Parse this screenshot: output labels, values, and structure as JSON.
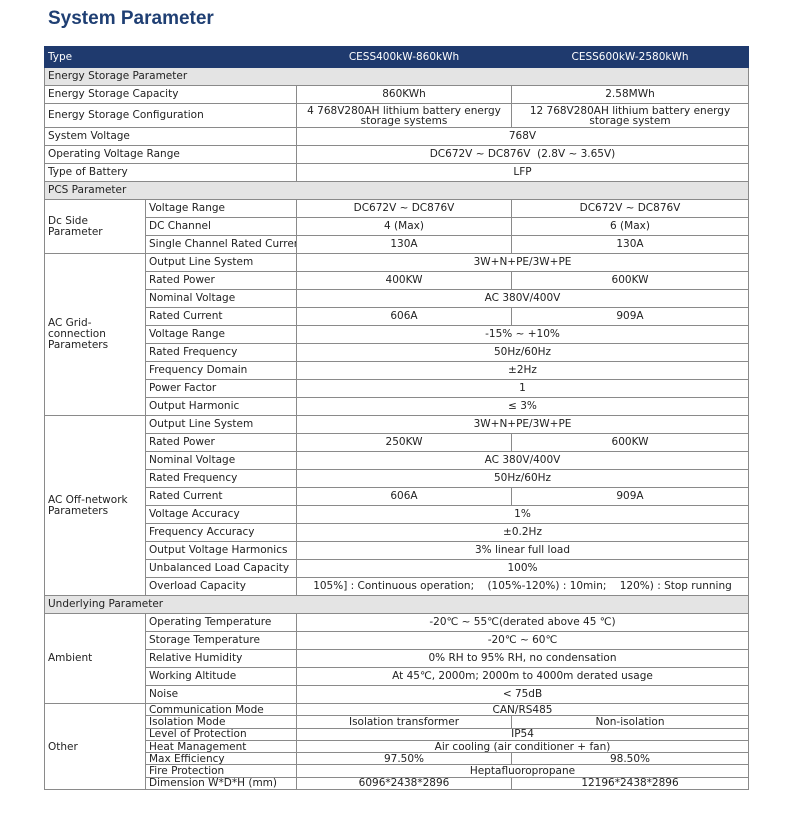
{
  "title": "System Parameter",
  "table": {
    "header": [
      "Type",
      "CESS400kW-860kWh",
      "CESS600kW-2580kWh"
    ],
    "sections": [
      {
        "title": "Energy Storage Parameter",
        "rows": [
          {
            "name": "Energy Storage Capacity",
            "values": [
              "860KWh",
              "2.58MWh"
            ]
          },
          {
            "name": "Energy Storage Configuration",
            "values": [
              "4 768V280AH lithium battery energy storage systems",
              "12 768V280AH lithium battery energy storage system"
            ]
          },
          {
            "name": "System Voltage",
            "values": [
              "768V"
            ]
          },
          {
            "name": "Operating Voltage Range",
            "values": [
              "DC672V ~ DC876V  (2.8V ~ 3.65V)"
            ]
          },
          {
            "name": "Type of Battery",
            "values": [
              "LFP"
            ]
          }
        ]
      },
      {
        "title": "PCS Parameter",
        "rows": [
          {
            "group": "Dc Side Parameter",
            "rows": [
              {
                "name": "Voltage Range",
                "values": [
                  "DC672V ~ DC876V",
                  "DC672V ~ DC876V"
                ]
              },
              {
                "name": "DC Channel",
                "values": [
                  "4 (Max)",
                  "6 (Max)"
                ]
              },
              {
                "name": "Single Channel Rated Current",
                "values": [
                  "130A",
                  "130A"
                ]
              }
            ]
          },
          {
            "group": "AC Grid-connection Parameters",
            "rows": [
              {
                "name": "Output Line System",
                "values": [
                  "3W+N+PE/3W+PE"
                ]
              },
              {
                "name": "Rated Power",
                "values": [
                  "400KW",
                  "600KW"
                ]
              },
              {
                "name": "Nominal Voltage",
                "values": [
                  "AC 380V/400V"
                ]
              },
              {
                "name": "Rated Current",
                "values": [
                  "606A",
                  "909A"
                ]
              },
              {
                "name": "Voltage Range",
                "values": [
                  "-15% ~ +10%"
                ]
              },
              {
                "name": "Rated Frequency",
                "values": [
                  "50Hz/60Hz"
                ]
              },
              {
                "name": "Frequency Domain",
                "values": [
                  "±2Hz"
                ]
              },
              {
                "name": "Power Factor",
                "values": [
                  "1"
                ]
              },
              {
                "name": "Output Harmonic",
                "values": [
                  "≤ 3%"
                ]
              }
            ]
          },
          {
            "group": "AC Off-network Parameters",
            "rows": [
              {
                "name": "Output Line System",
                "values": [
                  "3W+N+PE/3W+PE"
                ]
              },
              {
                "name": "Rated Power",
                "values": [
                  "250KW",
                  "600KW"
                ]
              },
              {
                "name": "Nominal Voltage",
                "values": [
                  "AC 380V/400V"
                ]
              },
              {
                "name": "Rated Frequency",
                "values": [
                  "50Hz/60Hz"
                ]
              },
              {
                "name": "Rated Current",
                "values": [
                  "606A",
                  "909A"
                ]
              },
              {
                "name": "Voltage Accuracy",
                "values": [
                  "1%"
                ]
              },
              {
                "name": "Frequency Accuracy",
                "values": [
                  "±0.2Hz"
                ]
              },
              {
                "name": "Output Voltage Harmonics",
                "values": [
                  "3% linear full load"
                ]
              },
              {
                "name": "Unbalanced Load Capacity",
                "values": [
                  "100%"
                ]
              },
              {
                "name": "Overload Capacity",
                "values": [
                  "105%] : Continuous operation;    (105%-120%) : 10min;    120%) : Stop running"
                ]
              }
            ]
          }
        ]
      },
      {
        "title": "Underlying Parameter",
        "rows": [
          {
            "group": "Ambient",
            "rows": [
              {
                "name": "Operating Temperature",
                "values": [
                  "-20℃ ~ 55℃(derated above 45 ℃)"
                ]
              },
              {
                "name": "Storage Temperature",
                "values": [
                  "-20℃ ~ 60℃"
                ]
              },
              {
                "name": "Relative Humidity",
                "values": [
                  "0% RH to 95% RH, no condensation"
                ]
              },
              {
                "name": "Working Altitude",
                "values": [
                  "At 45℃, 2000m; 2000m to 4000m derated usage"
                ]
              },
              {
                "name": "Noise",
                "values": [
                  "< 75dB"
                ]
              }
            ]
          },
          {
            "group": "Other",
            "rows": [
              {
                "name": "Communication Mode",
                "values": [
                  "CAN/RS485"
                ]
              },
              {
                "name": "Isolation Mode",
                "values": [
                  "Isolation transformer",
                  "Non-isolation"
                ]
              },
              {
                "name": "Level of Protection",
                "values": [
                  "IP54"
                ]
              },
              {
                "name": "Heat Management",
                "values": [
                  "Air cooling (air conditioner + fan)"
                ]
              },
              {
                "name": "Max Efficiency",
                "values": [
                  "97.50%",
                  "98.50%"
                ]
              },
              {
                "name": "Fire Protection",
                "values": [
                  "Heptafluoropropane"
                ]
              },
              {
                "name": "Dimension W*D*H (mm)",
                "values": [
                  "6096*2438*2896",
                  "12196*2438*2896"
                ]
              }
            ]
          }
        ]
      }
    ]
  }
}
